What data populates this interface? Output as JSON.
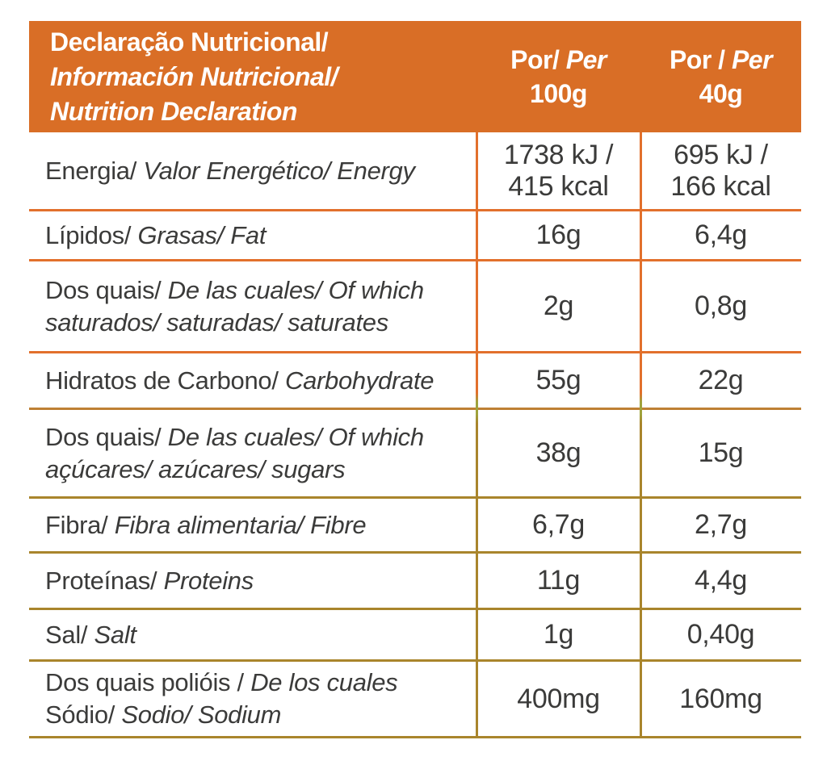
{
  "colors": {
    "header_bg": "#D96E26",
    "header_text": "#FFFFFF",
    "body_text": "#3B3B3A",
    "line_orange": "#E2702C",
    "line_transition": "#BE8034",
    "line_gold": "#A9852C"
  },
  "header": {
    "title_lines": [
      {
        "text": "Declaração Nutricional/",
        "italic": false
      },
      {
        "text": "Información Nutricional/",
        "italic": true
      },
      {
        "text": "Nutrition Declaration",
        "italic": true
      }
    ],
    "col_per_100g": {
      "line1": [
        {
          "text": "Por/ ",
          "italic": false
        },
        {
          "text": "Per",
          "italic": true
        }
      ],
      "line2": "100g"
    },
    "col_per_40g": {
      "line1": [
        {
          "text": "Por / ",
          "italic": false
        },
        {
          "text": "Per",
          "italic": true
        }
      ],
      "line2": "40g"
    }
  },
  "rows": [
    {
      "id": "energy",
      "divider_color": "#E2702C",
      "label_lines": [
        [
          {
            "text": "Energia/ ",
            "italic": false
          },
          {
            "text": "Valor Energético/ Energy",
            "italic": true
          }
        ]
      ],
      "per_100g": [
        "1738 kJ /",
        "415 kcal"
      ],
      "per_40g": [
        "695 kJ /",
        "166 kcal"
      ]
    },
    {
      "id": "fat",
      "divider_color": "#E2702C",
      "label_lines": [
        [
          {
            "text": "Lípidos/ ",
            "italic": false
          },
          {
            "text": "Grasas/ Fat",
            "italic": true
          }
        ]
      ],
      "per_100g": [
        "16g"
      ],
      "per_40g": [
        "6,4g"
      ]
    },
    {
      "id": "saturates",
      "divider_color": "#E2702C",
      "label_lines": [
        [
          {
            "text": "Dos quais/ ",
            "italic": false
          },
          {
            "text": "De las cuales/ Of which",
            "italic": true
          }
        ],
        [
          {
            "text": "saturados/ saturadas/ saturates",
            "italic": true
          }
        ]
      ],
      "per_100g": [
        "2g"
      ],
      "per_40g": [
        "0,8g"
      ]
    },
    {
      "id": "carbohydrate",
      "divider_color": "#BE8034",
      "label_lines": [
        [
          {
            "text": "Hidratos de Carbono/ ",
            "italic": false
          },
          {
            "text": "Carbohydrate",
            "italic": true
          }
        ]
      ],
      "per_100g": [
        "55g"
      ],
      "per_40g": [
        "22g"
      ]
    },
    {
      "id": "sugars",
      "divider_color": "#A9852C",
      "label_lines": [
        [
          {
            "text": "Dos quais/ ",
            "italic": false
          },
          {
            "text": "De las cuales/ Of which",
            "italic": true
          }
        ],
        [
          {
            "text": "açúcares/ azúcares/ sugars",
            "italic": true
          }
        ]
      ],
      "per_100g": [
        "38g"
      ],
      "per_40g": [
        "15g"
      ]
    },
    {
      "id": "fibre",
      "divider_color": "#A9852C",
      "label_lines": [
        [
          {
            "text": "Fibra/ ",
            "italic": false
          },
          {
            "text": "Fibra alimentaria/ Fibre",
            "italic": true
          }
        ]
      ],
      "per_100g": [
        "6,7g"
      ],
      "per_40g": [
        "2,7g"
      ]
    },
    {
      "id": "protein",
      "divider_color": "#A9852C",
      "label_lines": [
        [
          {
            "text": "Proteínas/ ",
            "italic": false
          },
          {
            "text": "Proteins",
            "italic": true
          }
        ]
      ],
      "per_100g": [
        "11g"
      ],
      "per_40g": [
        "4,4g"
      ]
    },
    {
      "id": "salt",
      "divider_color": "#A9852C",
      "label_lines": [
        [
          {
            "text": "Sal/ ",
            "italic": false
          },
          {
            "text": "Salt",
            "italic": true
          }
        ]
      ],
      "per_100g": [
        "1g"
      ],
      "per_40g": [
        "0,40g"
      ]
    },
    {
      "id": "polyols-sodium",
      "divider_color": "#A9852C",
      "label_lines": [
        [
          {
            "text": "Dos quais polióis / ",
            "italic": false
          },
          {
            "text": "De los cuales",
            "italic": true
          }
        ],
        [
          {
            "text": "Sódio/ ",
            "italic": false
          },
          {
            "text": "Sodio/ Sodium",
            "italic": true
          }
        ]
      ],
      "per_100g": [
        "400mg"
      ],
      "per_40g": [
        "160mg"
      ]
    }
  ]
}
